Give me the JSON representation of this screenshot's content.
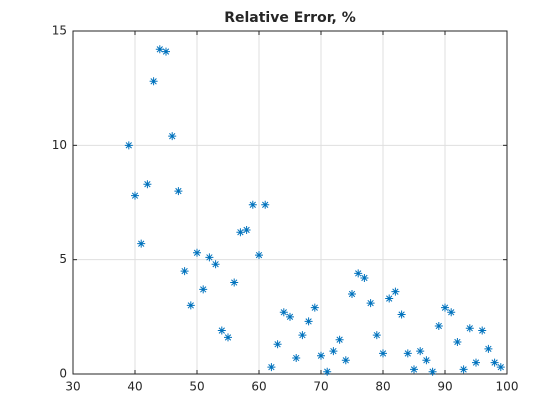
{
  "chart_data": {
    "type": "scatter",
    "title": "Relative Error, %",
    "x": [
      39,
      40,
      41,
      42,
      43,
      44,
      45,
      46,
      47,
      48,
      49,
      50,
      51,
      52,
      53,
      54,
      55,
      56,
      57,
      58,
      59,
      60,
      61,
      62,
      63,
      64,
      65,
      66,
      67,
      68,
      69,
      70,
      71,
      72,
      73,
      74,
      75,
      76,
      77,
      78,
      79,
      80,
      81,
      82,
      83,
      84,
      85,
      86,
      87,
      88,
      89,
      90,
      91,
      92,
      93,
      94,
      95,
      96,
      97,
      98,
      99
    ],
    "values": [
      10.0,
      7.8,
      5.7,
      8.3,
      12.8,
      14.2,
      14.1,
      10.4,
      8.0,
      4.5,
      3.0,
      5.3,
      3.7,
      5.1,
      4.8,
      1.9,
      1.6,
      4.0,
      6.2,
      6.3,
      7.4,
      5.2,
      7.4,
      0.3,
      1.3,
      2.7,
      2.5,
      0.7,
      1.7,
      2.3,
      2.9,
      0.8,
      0.1,
      1.0,
      1.5,
      0.6,
      3.5,
      4.4,
      4.2,
      3.1,
      1.7,
      0.9,
      3.3,
      3.6,
      2.6,
      0.9,
      0.2,
      1.0,
      0.6,
      0.1,
      2.1,
      2.9,
      2.7,
      1.4,
      0.2,
      2.0,
      0.5,
      1.9,
      1.1,
      0.5,
      0.3
    ],
    "color": "#0072bd",
    "xlim": [
      30,
      100
    ],
    "xticks": [
      30,
      40,
      50,
      60,
      70,
      80,
      90,
      100
    ],
    "ylim": [
      0,
      15
    ],
    "yticks": [
      0,
      5,
      10,
      15
    ],
    "grid": true
  }
}
